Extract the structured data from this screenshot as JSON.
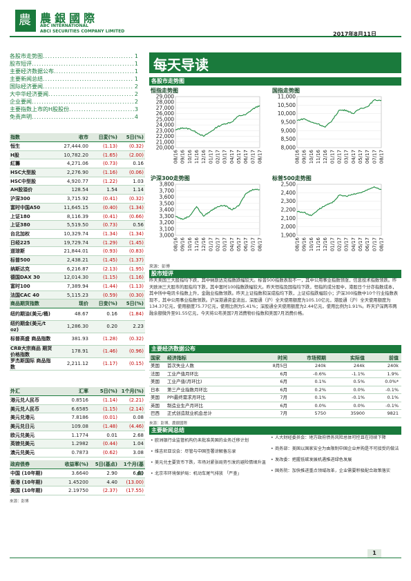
{
  "header": {
    "logo_char": "農",
    "brand_cn": "農銀國際",
    "brand_en1": "ABC INTERNATIONAL",
    "brand_en2": "ABCI SECURITIES COMPANY LIMITED",
    "date": "2017年8月11日"
  },
  "toc": [
    {
      "label": "各股市走势图",
      "page": "1"
    },
    {
      "label": "股市短评",
      "page": "1"
    },
    {
      "label": "主要经济数据公布",
      "page": "1"
    },
    {
      "label": "主要新闻总结",
      "page": "1"
    },
    {
      "label": "国际经济要闻",
      "page": "2"
    },
    {
      "label": "大中华经济要闻",
      "page": "2"
    },
    {
      "label": "企业要闻",
      "page": "2"
    },
    {
      "label": "主要指数上市的H股股份",
      "page": "3"
    },
    {
      "label": "免责声明",
      "page": "4"
    }
  ],
  "indices_table": {
    "headers": [
      "指数",
      "收市",
      "日変(%)",
      "5日(%)"
    ],
    "rows": [
      [
        "恒生",
        "27,444.00",
        "(1.13)",
        "(0.32)"
      ],
      [
        "H股",
        "10,782.20",
        "(1.65)",
        "(2.00)"
      ],
      [
        "紅籌",
        "4,271.06",
        "(0.73)",
        "0.16"
      ],
      [
        "HSC大型股",
        "2,276.90",
        "(1.16)",
        "(0.06)"
      ],
      [
        "HSC中型股",
        "4,920.77",
        "(1.22)",
        "1.03"
      ],
      [
        "AH股溢价",
        "128.54",
        "1.54",
        "1.14"
      ],
      [
        "沪深300",
        "3,715.92",
        "(0.41)",
        "(0.32)"
      ],
      [
        "富时中国A50",
        "11,645.15",
        "(0.40)",
        "(1.34)"
      ],
      [
        "上证180",
        "8,116.39",
        "(0.41)",
        "(0.66)"
      ],
      [
        "上证380",
        "5,519.50",
        "(0.73)",
        "0.56"
      ],
      [
        "台北加权",
        "10,329.74",
        "(1.34)",
        "(1.34)"
      ],
      [
        "日经225",
        "19,729.74",
        "(1.29)",
        "(1.45)"
      ],
      [
        "道琼斯",
        "21,844.01",
        "(0.93)",
        "(0.83)"
      ],
      [
        "标普500",
        "2,438.21",
        "(1.45)",
        "(1.37)"
      ],
      [
        "纳斯达克",
        "6,216.87",
        "(2.13)",
        "(1.95)"
      ],
      [
        "德国DAX 30",
        "12,014.30",
        "(1.15)",
        "(1.16)"
      ],
      [
        "富时100",
        "7,389.94",
        "(1.44)",
        "(1.13)"
      ],
      [
        "法国CAC 40",
        "5,115.23",
        "(0.59)",
        "(0.30)"
      ]
    ]
  },
  "commodity_table": {
    "headers": [
      "商品期货指数",
      "现价",
      "日变(%)",
      "5日(%)"
    ],
    "rows": [
      [
        "纽约期油(美元/桶)",
        "48.67",
        "0.16",
        "(1.84)"
      ],
      [
        "纽约期金(美元/t oz)",
        "1,286.30",
        "0.20",
        "2.23"
      ],
      [
        "标普高盛 商品指数",
        "381.93",
        "(1.28)",
        "(0.32)"
      ],
      [
        "CRB大宗商品 期货价格指数",
        "178.91",
        "(1.46)",
        "(0.96)"
      ],
      [
        "罗杰斯国际 商品指数",
        "2,211.12",
        "(1.17)",
        "(0.15)"
      ]
    ]
  },
  "fx_table": {
    "headers": [
      "外汇",
      "汇率",
      "5日(%)",
      "1个月(%)"
    ],
    "rows": [
      [
        "港元兑人民币",
        "0.8516",
        "(1.14)",
        "(2.21)"
      ],
      [
        "美元兑人民币",
        "6.6585",
        "(1.15)",
        "(2.14)"
      ],
      [
        "美元兑港元",
        "7.8186",
        "(0.01)",
        "0.08"
      ],
      [
        "美元兑日元",
        "109.08",
        "(1.48)",
        "(4.46)"
      ],
      [
        "欧元兑美元",
        "1.1774",
        "0.01",
        "2.68"
      ],
      [
        "英镑兑美元",
        "1.2982",
        "(0.44)",
        "1.04"
      ],
      [
        "澳元兑美元",
        "0.7873",
        "(0.62)",
        "3.08"
      ]
    ]
  },
  "bond_table": {
    "headers": [
      "政府债券",
      "收益率(%)",
      "5日(基点)",
      "1个月(基点)"
    ],
    "rows": [
      [
        "中国 (10年期)",
        "3.6640",
        "2.90",
        "6.60"
      ],
      [
        "香港 (10年期)",
        "1.45200",
        "4.40",
        "(13.00)"
      ],
      [
        "美国 (10年期)",
        "2.19750",
        "(2.37)",
        "(17.55)"
      ]
    ],
    "source": "來源：彭博"
  },
  "banner": "每天导读",
  "charts_section": "各股市走势图",
  "chart_data": [
    {
      "type": "line",
      "title": "恒指走势图",
      "x": [
        "08/16",
        "09/16",
        "10/16",
        "11/16",
        "12/16",
        "01/17",
        "02/17",
        "03/17",
        "04/17",
        "05/17",
        "06/17",
        "07/17",
        "08/17"
      ],
      "series": [
        {
          "values": [
            23100,
            23500,
            23300,
            22700,
            22000,
            22800,
            23700,
            24200,
            24500,
            25600,
            25800,
            26800,
            27444
          ]
        }
      ],
      "ylim": [
        20000,
        29000
      ],
      "yticks": [
        20000,
        21000,
        22000,
        23000,
        24000,
        25000,
        26000,
        27000,
        28000,
        29000
      ]
    },
    {
      "type": "line",
      "title": "国指走势图",
      "x": [
        "08/16",
        "09/16",
        "10/16",
        "11/16",
        "12/16",
        "01/17",
        "02/17",
        "03/17",
        "04/17",
        "05/17",
        "06/17",
        "07/17",
        "08/17"
      ],
      "series": [
        {
          "values": [
            9600,
            9700,
            9500,
            9400,
            9200,
            9600,
            10200,
            10200,
            10000,
            10300,
            10400,
            10800,
            10782
          ]
        }
      ],
      "ylim": [
        8000,
        11000
      ],
      "yticks": [
        8000,
        8500,
        9000,
        9500,
        10000,
        10500,
        11000
      ]
    },
    {
      "type": "line",
      "title": "沪深300走势图",
      "x": [
        "08/16",
        "09/16",
        "10/16",
        "11/16",
        "12/16",
        "01/17",
        "02/17",
        "03/17",
        "04/17",
        "05/17",
        "06/17",
        "07/17",
        "08/17"
      ],
      "series": [
        {
          "values": [
            3300,
            3250,
            3300,
            3450,
            3300,
            3380,
            3450,
            3470,
            3400,
            3460,
            3650,
            3720,
            3716
          ]
        }
      ],
      "ylim": [
        3000,
        3800
      ],
      "yticks": [
        3000,
        3100,
        3200,
        3300,
        3400,
        3500,
        3600,
        3700,
        3800
      ]
    },
    {
      "type": "line",
      "title": "标普500走势图",
      "x": [
        "08/16",
        "09/16",
        "10/16",
        "11/16",
        "12/16",
        "01/17",
        "02/17",
        "03/17",
        "04/17",
        "05/17",
        "06/17",
        "07/17",
        "08/17"
      ],
      "series": [
        {
          "values": [
            2180,
            2170,
            2130,
            2200,
            2250,
            2280,
            2370,
            2360,
            2380,
            2400,
            2430,
            2470,
            2438
          ]
        }
      ],
      "ylim": [
        1900,
        2500
      ],
      "yticks": [
        1900,
        2000,
        2100,
        2200,
        2300,
        2400,
        2500
      ]
    }
  ],
  "charts_source": "來源：彭博",
  "market_section": "股市短评",
  "market_text": "昨天美国三大股指均下跌，其中纳斯达克指数跌幅较大。标普500指数表现不一，其中公用事业指数领涨，信息技术指数领跌。昨天欧洲三大股市的股指均下跌，其中富时100指数跌幅较大。昨天恒指及国指均下跌，恒指的成分股中，港股日个分亦指数成本，其中所中电讯卡指数上升，金融业指数领跌。昨天上证指数和深成指均下跌，上证综指跌幅较小；沪深300指数中10个行业指数表现不，其中公用事业指数领跌。沪深港通资金流出，深股通（沪）全天使用额度为105.10亿元，港股通（沪）全天使用额度为134.37亿元，使用额度75.77亿元，使用比例为5.41%；深股通全天使用额度为2.44亿元，使用比例为1.91%。昨天沪深两市两融余额微升至91.55亿元，今天将公布美国7月消费物价指数和美国7月消费价格。",
  "econ_section": "主要经济数据公布",
  "econ_table": {
    "headers": [
      "国家",
      "经济指标",
      "时间",
      "市场预期",
      "实际值",
      "前值"
    ],
    "rows": [
      [
        "美国",
        "首次失业人数",
        "8月5日",
        "240k",
        "244k",
        "240k"
      ],
      [
        "法国",
        "工业产值月环比",
        "6月",
        "-0.6%",
        "-1.1%",
        "1.9%"
      ],
      [
        "美国",
        "工业产值(月环比)",
        "6月",
        "0.1%",
        "0.5%",
        "0.0%*"
      ],
      [
        "日本",
        "第三产业指数月环比",
        "6月",
        "0.2%",
        "0.0%",
        "-0.1%"
      ],
      [
        "美国",
        "PPI最终需求月环比",
        "7月",
        "0.1%",
        "-0.1%",
        "0.1%"
      ],
      [
        "英国",
        "制造业生产月环比",
        "6月",
        "0.0%",
        "0.0%",
        "-0.1%"
      ],
      [
        "巴西",
        "正式创造就业机会总计",
        "7月",
        "5750",
        "35900",
        "9821"
      ]
    ],
    "source": "來源：彭博、農銀國際"
  },
  "news_section": "主要新闻总结",
  "news_left": [
    "欧洲银行业监管机构仍未批准英国的业务迁移计划",
    "维吉尼亚议会：尽管与中国签署谅解备忘录",
    "美元兑主要货币下跌，市场对紧张局势引发的避险情绪升温",
    "北京市环境保护局：机动车尾气排放 「严查」"
  ],
  "news_right": [
    "人大财经委员会：地方政府债务风险总体可控且在持续下降",
    "商务部：美国以国家安全为由限制中国企业并购是不可接受的做法",
    "发改委：把握低碳发展机遇推进绿色发展",
    "国务院：加快推进重点领域改革，企业需要积极配合政策落实"
  ],
  "page_number": "1"
}
